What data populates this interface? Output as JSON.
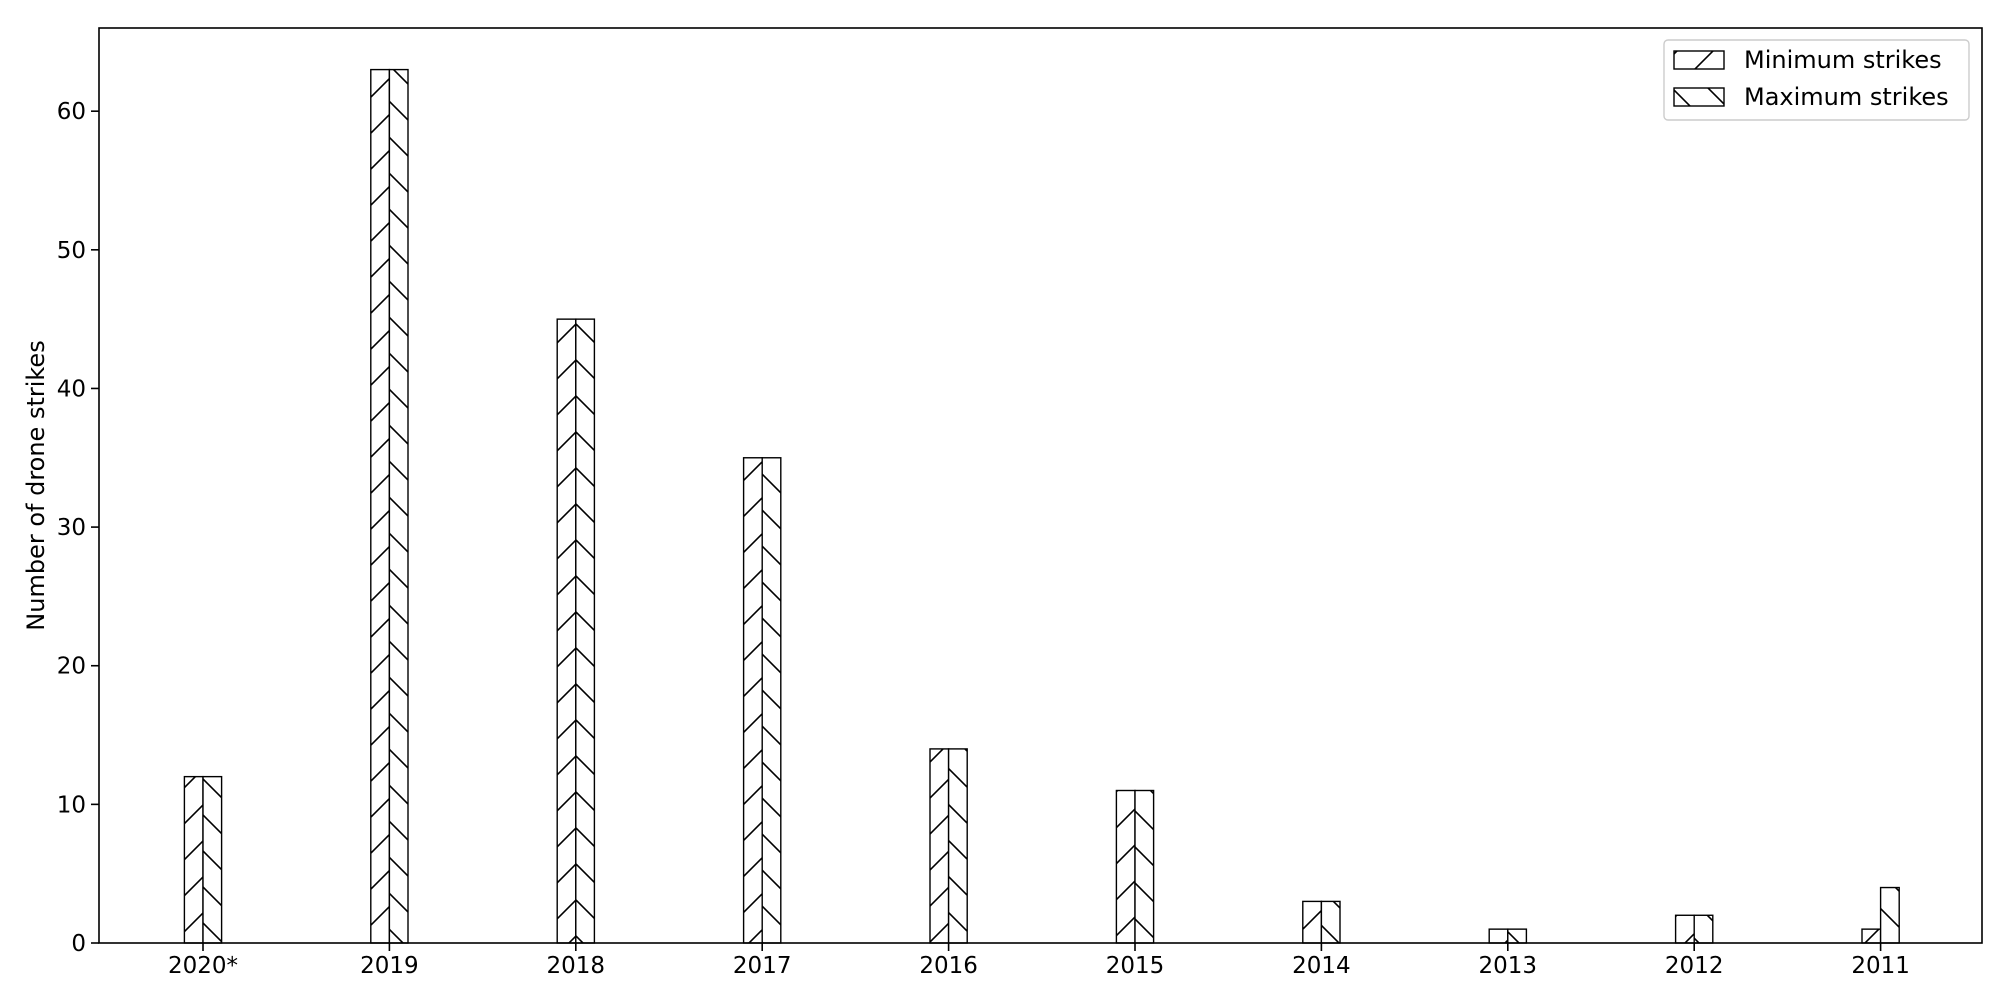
{
  "chart_data": {
    "type": "bar",
    "categories": [
      "2020*",
      "2019",
      "2018",
      "2017",
      "2016",
      "2015",
      "2014",
      "2013",
      "2012",
      "2011"
    ],
    "series": [
      {
        "name": "Minimum strikes",
        "values": [
          12,
          63,
          45,
          35,
          14,
          11,
          3,
          1,
          2,
          1
        ],
        "hatch": "forward-diagonal"
      },
      {
        "name": "Maximum strikes",
        "values": [
          12,
          63,
          45,
          35,
          14,
          11,
          3,
          1,
          2,
          4
        ],
        "hatch": "back-diagonal"
      }
    ],
    "xlabel": "",
    "ylabel": "Number of drone strikes",
    "ylim": [
      0,
      66
    ],
    "yticks": [
      0,
      10,
      20,
      30,
      40,
      50,
      60
    ],
    "grid": false,
    "legend_position": "top-right",
    "colors": {
      "bar_fill": "#ffffff",
      "bar_edge": "#000000",
      "hatch": "#000000"
    }
  }
}
